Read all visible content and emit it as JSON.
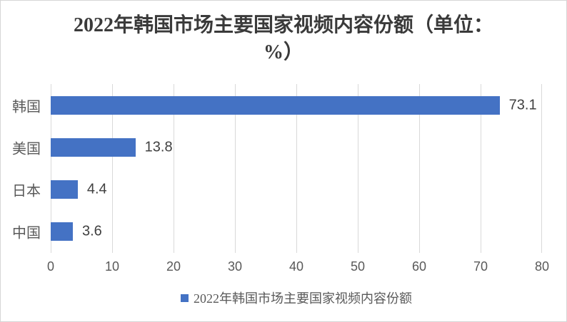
{
  "chart_data": {
    "type": "bar",
    "orientation": "horizontal",
    "title": "2022年韩国市场主要国家视频内容份额（单位：%）",
    "title_lines": [
      "2022年韩国市场主要国家视频内容份额（单位：",
      "%）"
    ],
    "categories": [
      "韩国",
      "美国",
      "日本",
      "中国"
    ],
    "values": [
      73.1,
      13.8,
      4.4,
      3.6
    ],
    "value_labels": [
      "73.1",
      "13.8",
      "4.4",
      "3.6"
    ],
    "x_ticks": [
      "0",
      "10",
      "20",
      "30",
      "40",
      "50",
      "60",
      "70",
      "80"
    ],
    "xlim": [
      0,
      80
    ],
    "grid": true,
    "legend": {
      "label": "2022年韩国市场主要国家视频内容份额",
      "position": "bottom"
    },
    "colors": {
      "bar": "#4472C4",
      "gridline": "#D9D9D9",
      "axis_text": "#595959",
      "category_text": "#595959",
      "data_label_text": "#404040",
      "title_text": "#3A3A3A",
      "legend_text": "#595959",
      "border": "#D6D6D6",
      "background": "#FFFFFF"
    }
  }
}
